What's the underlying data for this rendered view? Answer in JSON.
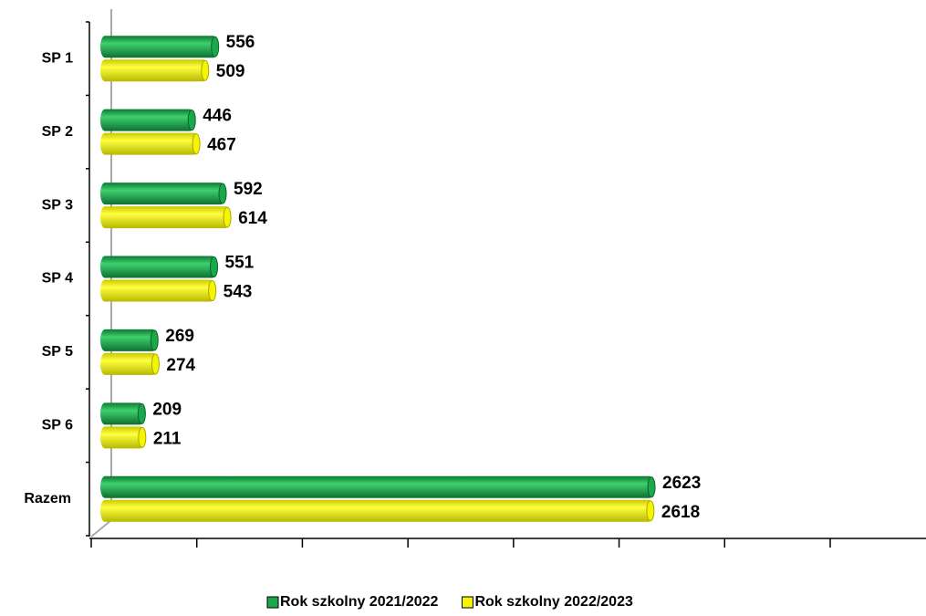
{
  "chart_data": {
    "type": "bar",
    "orientation": "horizontal",
    "categories": [
      "SP 1",
      "SP 2",
      "SP 3",
      "SP 4",
      "SP 5",
      "SP 6",
      "Razem"
    ],
    "series": [
      {
        "name": "Rok szkolny 2021/2022",
        "color": "#1aa84a",
        "values": [
          556,
          446,
          592,
          551,
          269,
          209,
          2623
        ]
      },
      {
        "name": "Rok szkolny 2022/2023",
        "color": "#f5f500",
        "values": [
          509,
          467,
          614,
          543,
          274,
          211,
          2618
        ]
      }
    ],
    "xlim": [
      0,
      3500
    ],
    "xticks": [
      0,
      500,
      1000,
      1500,
      2000,
      2500,
      3000,
      3500
    ],
    "legend": "bottom"
  }
}
